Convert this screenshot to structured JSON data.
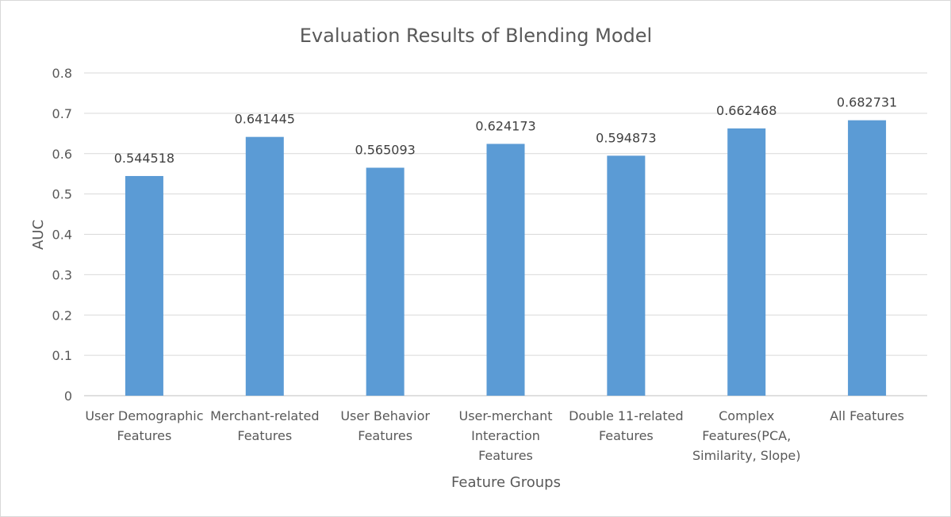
{
  "chart_data": {
    "type": "bar",
    "title": "Evaluation Results of Blending Model",
    "xlabel": "Feature Groups",
    "ylabel": "AUC",
    "ylim": [
      0,
      0.8
    ],
    "yticks": [
      "0",
      "0.1",
      "0.2",
      "0.3",
      "0.4",
      "0.5",
      "0.6",
      "0.7",
      "0.8"
    ],
    "categories": [
      [
        "User Demographic",
        "Features"
      ],
      [
        "Merchant-related",
        "Features"
      ],
      [
        "User Behavior",
        "Features"
      ],
      [
        "User-merchant",
        "Interaction",
        "Features"
      ],
      [
        "Double 11-related",
        "Features"
      ],
      [
        "Complex",
        "Features(PCA,",
        "Similarity, Slope)"
      ],
      [
        "All Features"
      ]
    ],
    "values": [
      0.544518,
      0.641445,
      0.565093,
      0.624173,
      0.594873,
      0.662468,
      0.682731
    ],
    "data_labels": [
      "0.544518",
      "0.641445",
      "0.565093",
      "0.624173",
      "0.594873",
      "0.662468",
      "0.682731"
    ],
    "bar_color": "#5b9bd5",
    "grid": true,
    "legend": "none"
  }
}
